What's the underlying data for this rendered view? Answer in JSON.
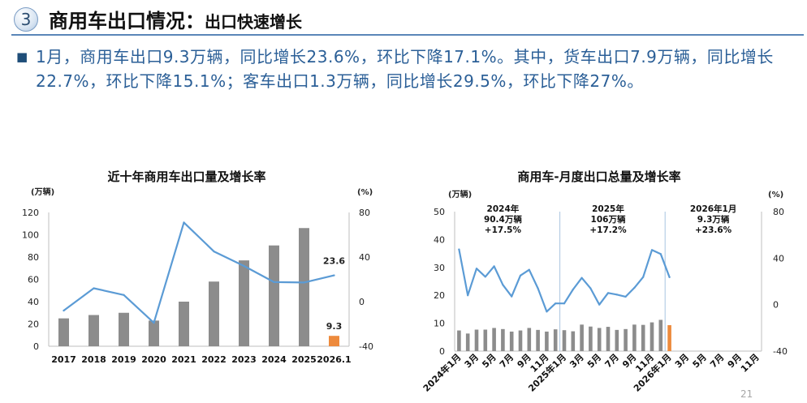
{
  "header": {
    "section_number": "3",
    "title_main": "商用车出口情况：",
    "title_sub": "出口快速增长"
  },
  "summary": {
    "bullet": "■",
    "lines": [
      "1月，商用车出口9.3万辆，同比增长23.6%，环比下降17.1%。其中，货车出口7.9万辆，同比增长",
      "22.7%，环比下降15.1%；客车出口1.3万辆，同比增长29.5%，环比下降27%。"
    ]
  },
  "page_number": "21",
  "theme": {
    "title_rule": "#5a86b8",
    "summary_text": "#2b5f97",
    "bullet": "#1f4e79"
  },
  "chart_data": [
    {
      "type": "bar",
      "title": "近十年商用车出口量及增长率",
      "ylabel": "(万辆)",
      "y2label": "(%)",
      "categories": [
        "2017",
        "2018",
        "2019",
        "2020",
        "2021",
        "2022",
        "2023",
        "2024",
        "2025",
        "2026.1"
      ],
      "ylim": [
        0,
        120
      ],
      "y_ticks": [
        0,
        20,
        40,
        60,
        80,
        100,
        120
      ],
      "y2lim": [
        -40,
        80
      ],
      "y2_ticks": [
        -40,
        0,
        40,
        80
      ],
      "grid": false,
      "series": [
        {
          "type": "bar",
          "axis": "left",
          "values": [
            25,
            28,
            30,
            23,
            40,
            58,
            77,
            90.4,
            106,
            9.3
          ],
          "color": "#8c8c8c",
          "highlight_index": 9,
          "highlight_color": "#ed8a3c"
        },
        {
          "type": "line",
          "axis": "right",
          "values": [
            -8,
            12,
            6,
            -19,
            71,
            45,
            32,
            17.5,
            17.2,
            23.6
          ],
          "color": "#5b9bd5"
        }
      ],
      "data_labels": [
        {
          "series": 0,
          "index": 9,
          "text": "9.3"
        },
        {
          "series": 1,
          "index": 9,
          "text": "23.6"
        }
      ]
    },
    {
      "type": "bar",
      "title": "商用车-月度出口总量及增长率",
      "ylabel": "(万辆)",
      "y2label": "(%)",
      "x_tick_labels": [
        "2024年1月",
        "3月",
        "5月",
        "7月",
        "9月",
        "11月",
        "2025年1月",
        "3月",
        "5月",
        "7月",
        "9月",
        "11月",
        "2026年1月",
        "3月",
        "5月",
        "7月",
        "9月",
        "11月"
      ],
      "ylim": [
        0,
        50
      ],
      "y_ticks": [
        0,
        10,
        20,
        30,
        40,
        50
      ],
      "y2lim": [
        -40,
        80
      ],
      "y2_ticks": [
        -40,
        0,
        40,
        80
      ],
      "grid": false,
      "separator_color": "#a9c4e0",
      "series": [
        {
          "type": "bar",
          "axis": "left",
          "values": [
            7.4,
            6.3,
            7.7,
            7.7,
            8.3,
            7.9,
            7.0,
            7.4,
            8.3,
            7.6,
            7.0,
            7.8,
            7.5,
            7.1,
            9.5,
            8.8,
            8.3,
            8.7,
            7.6,
            7.9,
            9.5,
            9.4,
            10.3,
            11.2,
            9.3
          ],
          "color": "#8c8c8c",
          "highlight_index": 24,
          "highlight_color": "#ed8a3c"
        },
        {
          "type": "line",
          "axis": "right",
          "values": [
            47.5,
            8,
            31,
            24,
            33,
            17,
            7,
            25,
            30,
            14,
            -6,
            1,
            1,
            13,
            23,
            14,
            0,
            10,
            8.6,
            6.8,
            14.5,
            23.7,
            47,
            43.6,
            23.6
          ],
          "color": "#5b9bd5"
        }
      ],
      "annotations": [
        {
          "lines": [
            "2024年",
            "90.4万辆",
            "+17.5%"
          ]
        },
        {
          "lines": [
            "2025年",
            "106万辆",
            "+17.2%"
          ]
        },
        {
          "lines": [
            "2026年1月",
            "9.3万辆",
            "+23.6%"
          ]
        }
      ]
    }
  ]
}
